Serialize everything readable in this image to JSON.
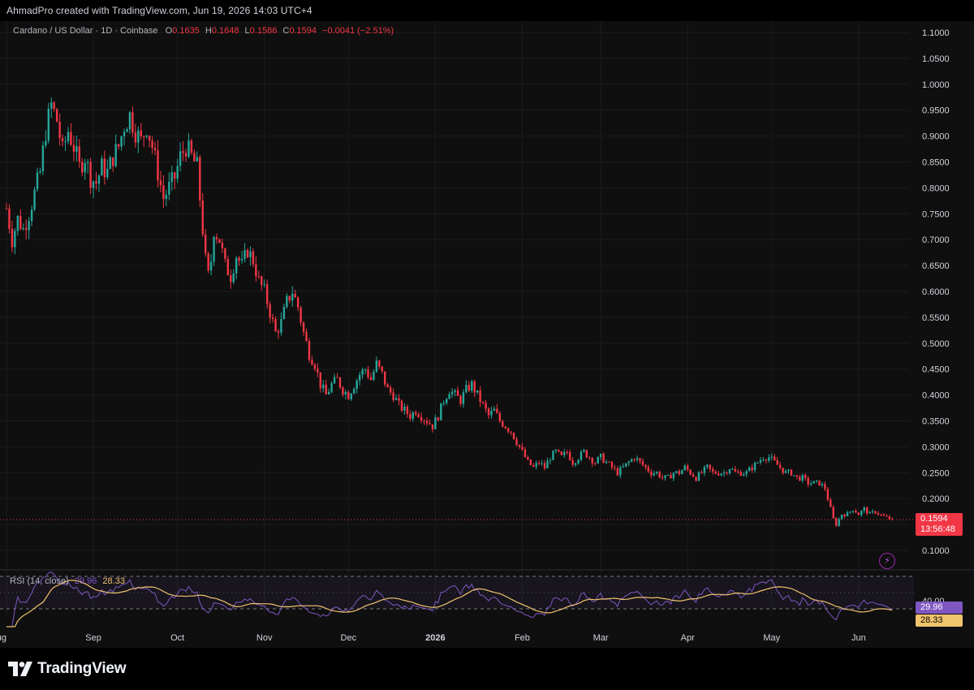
{
  "header": {
    "credit": "AhmadPro created with TradingView.com, Jun 19, 2026 14:03 UTC+4"
  },
  "legend": {
    "symbol": "Cardano / US Dollar · 1D · Coinbase",
    "open_label": "O",
    "open": "0.1635",
    "high_label": "H",
    "high": "0.1648",
    "low_label": "L",
    "low": "0.1586",
    "close_label": "C",
    "close": "0.1594",
    "change": "−0.0041 (−2.51%)"
  },
  "price_tag": {
    "price": "0.1594",
    "countdown": "13:56:48"
  },
  "rsi": {
    "label": "RSI (14, close)",
    "rsi_value": "29.96",
    "ma_value": "28.33",
    "level_label": "40.00"
  },
  "footer": {
    "brand": "TradingView"
  },
  "icons": {
    "logo": "tradingview-logo-icon",
    "bolt": "lightning-icon"
  },
  "colors": {
    "background": "#0f0f0f",
    "up": "#26a69a",
    "down": "#f23645",
    "rsi_line": "#7e57c2",
    "rsi_ma": "#f0c36d"
  },
  "chart_data": {
    "type": "candlestick",
    "symbol": "Cardano / US Dollar",
    "interval": "1D",
    "exchange": "Coinbase",
    "y_axis": {
      "min": 0.1,
      "max": 1.1,
      "side": "right",
      "ticks": [
        "1.1000",
        "1.0500",
        "1.0000",
        "0.9500",
        "0.9000",
        "0.8500",
        "0.8000",
        "0.7500",
        "0.7000",
        "0.6500",
        "0.6000",
        "0.5500",
        "0.5000",
        "0.4500",
        "0.4000",
        "0.3500",
        "0.3000",
        "0.2500",
        "0.2000",
        "0.1500",
        "0.1000"
      ]
    },
    "x_axis": {
      "labels": [
        {
          "label": "Aug",
          "day": 0
        },
        {
          "label": "Sep",
          "day": 31
        },
        {
          "label": "Oct",
          "day": 61
        },
        {
          "label": "Nov",
          "day": 92
        },
        {
          "label": "Dec",
          "day": 122
        },
        {
          "label": "2026",
          "day": 153
        },
        {
          "label": "Feb",
          "day": 184
        },
        {
          "label": "Mar",
          "day": 212
        },
        {
          "label": "Apr",
          "day": 243
        },
        {
          "label": "May",
          "day": 273
        },
        {
          "label": "Jun",
          "day": 304
        }
      ],
      "total_days": 322
    },
    "close_path": [
      [
        0,
        0.76
      ],
      [
        2,
        0.7
      ],
      [
        4,
        0.74
      ],
      [
        6,
        0.72
      ],
      [
        8,
        0.75
      ],
      [
        10,
        0.79
      ],
      [
        12,
        0.83
      ],
      [
        14,
        0.91
      ],
      [
        16,
        0.96
      ],
      [
        18,
        0.93
      ],
      [
        20,
        0.87
      ],
      [
        22,
        0.91
      ],
      [
        24,
        0.88
      ],
      [
        26,
        0.84
      ],
      [
        28,
        0.86
      ],
      [
        30,
        0.82
      ],
      [
        32,
        0.81
      ],
      [
        34,
        0.84
      ],
      [
        36,
        0.83
      ],
      [
        38,
        0.86
      ],
      [
        40,
        0.88
      ],
      [
        42,
        0.92
      ],
      [
        44,
        0.94
      ],
      [
        46,
        0.91
      ],
      [
        48,
        0.89
      ],
      [
        50,
        0.92
      ],
      [
        52,
        0.88
      ],
      [
        54,
        0.83
      ],
      [
        56,
        0.78
      ],
      [
        58,
        0.8
      ],
      [
        60,
        0.82
      ],
      [
        62,
        0.86
      ],
      [
        64,
        0.88
      ],
      [
        66,
        0.86
      ],
      [
        68,
        0.84
      ],
      [
        69,
        0.78
      ],
      [
        70,
        0.72
      ],
      [
        71,
        0.66
      ],
      [
        72,
        0.63
      ],
      [
        73,
        0.66
      ],
      [
        74,
        0.72
      ],
      [
        76,
        0.7
      ],
      [
        78,
        0.65
      ],
      [
        80,
        0.63
      ],
      [
        82,
        0.67
      ],
      [
        84,
        0.65
      ],
      [
        86,
        0.68
      ],
      [
        88,
        0.66
      ],
      [
        90,
        0.62
      ],
      [
        92,
        0.6
      ],
      [
        94,
        0.56
      ],
      [
        96,
        0.52
      ],
      [
        98,
        0.54
      ],
      [
        100,
        0.58
      ],
      [
        102,
        0.6
      ],
      [
        104,
        0.57
      ],
      [
        106,
        0.52
      ],
      [
        108,
        0.48
      ],
      [
        110,
        0.46
      ],
      [
        112,
        0.42
      ],
      [
        114,
        0.4
      ],
      [
        116,
        0.42
      ],
      [
        118,
        0.43
      ],
      [
        120,
        0.41
      ],
      [
        122,
        0.4
      ],
      [
        124,
        0.42
      ],
      [
        126,
        0.44
      ],
      [
        128,
        0.45
      ],
      [
        130,
        0.43
      ],
      [
        132,
        0.46
      ],
      [
        134,
        0.44
      ],
      [
        136,
        0.41
      ],
      [
        138,
        0.4
      ],
      [
        140,
        0.38
      ],
      [
        142,
        0.37
      ],
      [
        144,
        0.36
      ],
      [
        146,
        0.37
      ],
      [
        148,
        0.36
      ],
      [
        150,
        0.35
      ],
      [
        152,
        0.34
      ],
      [
        154,
        0.36
      ],
      [
        156,
        0.39
      ],
      [
        158,
        0.41
      ],
      [
        160,
        0.4
      ],
      [
        162,
        0.39
      ],
      [
        164,
        0.41
      ],
      [
        166,
        0.42
      ],
      [
        168,
        0.4
      ],
      [
        170,
        0.38
      ],
      [
        172,
        0.36
      ],
      [
        174,
        0.37
      ],
      [
        176,
        0.35
      ],
      [
        178,
        0.34
      ],
      [
        180,
        0.33
      ],
      [
        182,
        0.31
      ],
      [
        184,
        0.29
      ],
      [
        186,
        0.27
      ],
      [
        188,
        0.26
      ],
      [
        190,
        0.27
      ],
      [
        192,
        0.26
      ],
      [
        194,
        0.28
      ],
      [
        196,
        0.29
      ],
      [
        198,
        0.28
      ],
      [
        200,
        0.29
      ],
      [
        202,
        0.27
      ],
      [
        204,
        0.28
      ],
      [
        206,
        0.29
      ],
      [
        208,
        0.28
      ],
      [
        210,
        0.27
      ],
      [
        212,
        0.28
      ],
      [
        214,
        0.27
      ],
      [
        216,
        0.26
      ],
      [
        218,
        0.25
      ],
      [
        220,
        0.26
      ],
      [
        222,
        0.27
      ],
      [
        224,
        0.28
      ],
      [
        226,
        0.27
      ],
      [
        228,
        0.26
      ],
      [
        230,
        0.25
      ],
      [
        232,
        0.25
      ],
      [
        234,
        0.24
      ],
      [
        236,
        0.24
      ],
      [
        238,
        0.25
      ],
      [
        240,
        0.25
      ],
      [
        242,
        0.26
      ],
      [
        244,
        0.25
      ],
      [
        246,
        0.24
      ],
      [
        248,
        0.25
      ],
      [
        250,
        0.26
      ],
      [
        252,
        0.25
      ],
      [
        254,
        0.25
      ],
      [
        256,
        0.25
      ],
      [
        258,
        0.26
      ],
      [
        260,
        0.25
      ],
      [
        262,
        0.25
      ],
      [
        264,
        0.25
      ],
      [
        266,
        0.26
      ],
      [
        268,
        0.27
      ],
      [
        270,
        0.28
      ],
      [
        272,
        0.28
      ],
      [
        274,
        0.27
      ],
      [
        276,
        0.26
      ],
      [
        278,
        0.25
      ],
      [
        280,
        0.25
      ],
      [
        282,
        0.24
      ],
      [
        284,
        0.24
      ],
      [
        286,
        0.23
      ],
      [
        288,
        0.23
      ],
      [
        290,
        0.23
      ],
      [
        292,
        0.22
      ],
      [
        293,
        0.2
      ],
      [
        294,
        0.18
      ],
      [
        295,
        0.16
      ],
      [
        296,
        0.15
      ],
      [
        298,
        0.17
      ],
      [
        300,
        0.17
      ],
      [
        302,
        0.18
      ],
      [
        304,
        0.17
      ],
      [
        306,
        0.18
      ],
      [
        308,
        0.17
      ],
      [
        310,
        0.175
      ],
      [
        312,
        0.168
      ],
      [
        314,
        0.163
      ],
      [
        316,
        0.1594
      ]
    ],
    "last_close": 0.1594,
    "rsi": {
      "length": 14,
      "source": "close",
      "level_label": 40.0,
      "last_rsi": 29.96,
      "last_ma": 28.33
    },
    "grid": true,
    "legend_position": "top-left"
  }
}
